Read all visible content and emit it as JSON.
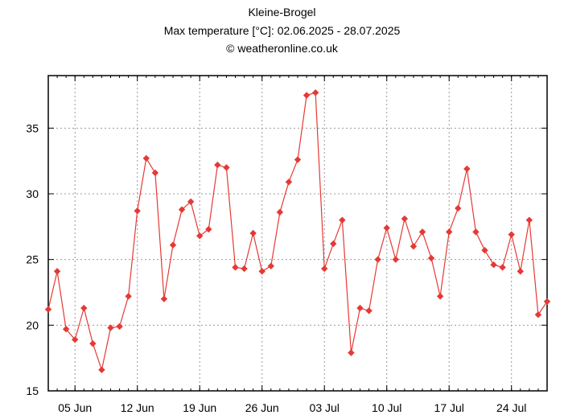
{
  "chart_data": {
    "type": "line",
    "title": "Kleine-Brogel",
    "subtitle": "Max temperature [°C]: 02.06.2025 - 28.07.2025",
    "credit": "© weatheronline.co.uk",
    "xlabel": "",
    "ylabel": "",
    "x_tick_labels": [
      "05 Jun",
      "12 Jun",
      "19 Jun",
      "26 Jun",
      "03 Jul",
      "10 Jul",
      "17 Jul",
      "24 Jul"
    ],
    "y_ticks": [
      15,
      20,
      25,
      30,
      35
    ],
    "ylim": [
      15,
      39
    ],
    "x_start": "2025-06-02",
    "x_end": "2025-07-28",
    "grid": true,
    "line_color": "#e53935",
    "series": [
      {
        "values": [
          21.2,
          24.1,
          19.7,
          18.9,
          21.3,
          18.6,
          16.6,
          19.8,
          19.9,
          22.2,
          28.7,
          32.7,
          31.6,
          22.0,
          26.1,
          28.8,
          29.4,
          26.8,
          27.3,
          32.2,
          32.0,
          24.4,
          24.3,
          27.0,
          24.1,
          24.5,
          28.6,
          30.9,
          32.6,
          37.5,
          37.7,
          24.3,
          26.2,
          28.0,
          17.9,
          21.3,
          21.1,
          25.0,
          27.4,
          25.0,
          28.1,
          26.0,
          27.1,
          25.1,
          22.2,
          27.1,
          28.9,
          31.9,
          27.1,
          25.7,
          24.6,
          24.4,
          26.9,
          24.1,
          28.0,
          20.8,
          21.8
        ]
      }
    ]
  }
}
